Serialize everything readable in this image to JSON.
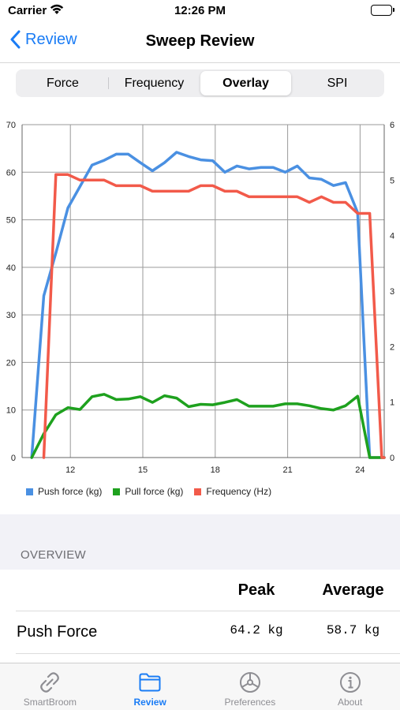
{
  "status": {
    "carrier": "Carrier",
    "time": "12:26 PM"
  },
  "nav": {
    "back_label": "Review",
    "title": "Sweep Review"
  },
  "segments": [
    {
      "label": "Force",
      "selected": false
    },
    {
      "label": "Frequency",
      "selected": false
    },
    {
      "label": "Overlay",
      "selected": true
    },
    {
      "label": "SPI",
      "selected": false
    }
  ],
  "colors": {
    "accent": "#1a7cf5",
    "push": "#4a90e2",
    "pull": "#1ea11e",
    "freq": "#f25a4a"
  },
  "chart_data": {
    "type": "line",
    "x_ticks": [
      12,
      15,
      18,
      21,
      24
    ],
    "xlim": [
      10,
      25
    ],
    "ylim_left": [
      0,
      70
    ],
    "y_ticks_left": [
      0,
      10,
      20,
      30,
      40,
      50,
      60,
      70
    ],
    "ylim_right": [
      0,
      6
    ],
    "y_ticks_right": [
      0,
      1,
      2,
      3,
      4,
      5,
      6
    ],
    "grid": true,
    "legend_position": "bottom-left",
    "series": [
      {
        "name": "Push force (kg)",
        "axis": "left",
        "color": "#4a90e2",
        "points": [
          [
            10.4,
            0
          ],
          [
            10.9,
            34
          ],
          [
            11.4,
            43
          ],
          [
            11.9,
            52.5
          ],
          [
            12.4,
            57
          ],
          [
            12.9,
            61.5
          ],
          [
            13.4,
            62.5
          ],
          [
            13.9,
            63.8
          ],
          [
            14.4,
            63.8
          ],
          [
            14.9,
            62
          ],
          [
            15.4,
            60.3
          ],
          [
            15.9,
            62
          ],
          [
            16.4,
            64.2
          ],
          [
            16.9,
            63.3
          ],
          [
            17.4,
            62.6
          ],
          [
            17.9,
            62.4
          ],
          [
            18.4,
            60
          ],
          [
            18.9,
            61.3
          ],
          [
            19.4,
            60.7
          ],
          [
            19.9,
            61
          ],
          [
            20.4,
            61
          ],
          [
            20.9,
            60
          ],
          [
            21.4,
            61.3
          ],
          [
            21.9,
            58.8
          ],
          [
            22.4,
            58.5
          ],
          [
            22.9,
            57.2
          ],
          [
            23.4,
            57.8
          ],
          [
            23.9,
            51.5
          ],
          [
            24.4,
            0
          ],
          [
            25,
            0
          ]
        ]
      },
      {
        "name": "Pull force (kg)",
        "axis": "left",
        "color": "#1ea11e",
        "points": [
          [
            10.4,
            0
          ],
          [
            10.9,
            5
          ],
          [
            11.4,
            9
          ],
          [
            11.9,
            10.5
          ],
          [
            12.4,
            10.1
          ],
          [
            12.9,
            12.8
          ],
          [
            13.4,
            13.3
          ],
          [
            13.9,
            12.2
          ],
          [
            14.4,
            12.3
          ],
          [
            14.9,
            12.8
          ],
          [
            15.4,
            11.6
          ],
          [
            15.9,
            13
          ],
          [
            16.4,
            12.5
          ],
          [
            16.9,
            10.7
          ],
          [
            17.4,
            11.2
          ],
          [
            17.9,
            11.1
          ],
          [
            18.4,
            11.6
          ],
          [
            18.9,
            12.2
          ],
          [
            19.4,
            10.8
          ],
          [
            19.9,
            10.8
          ],
          [
            20.4,
            10.8
          ],
          [
            20.9,
            11.3
          ],
          [
            21.4,
            11.3
          ],
          [
            21.9,
            10.9
          ],
          [
            22.4,
            10.3
          ],
          [
            22.9,
            10
          ],
          [
            23.4,
            10.9
          ],
          [
            23.9,
            12.9
          ],
          [
            24.4,
            0
          ],
          [
            25,
            0
          ]
        ]
      },
      {
        "name": "Frequency (Hz)",
        "axis": "right",
        "color": "#f25a4a",
        "points": [
          [
            10.9,
            0
          ],
          [
            11.4,
            5.1
          ],
          [
            11.9,
            5.1
          ],
          [
            12.4,
            5
          ],
          [
            12.9,
            5
          ],
          [
            13.4,
            5
          ],
          [
            13.9,
            4.9
          ],
          [
            14.4,
            4.9
          ],
          [
            14.9,
            4.9
          ],
          [
            15.4,
            4.8
          ],
          [
            15.9,
            4.8
          ],
          [
            16.4,
            4.8
          ],
          [
            16.9,
            4.8
          ],
          [
            17.4,
            4.9
          ],
          [
            17.9,
            4.9
          ],
          [
            18.4,
            4.8
          ],
          [
            18.9,
            4.8
          ],
          [
            19.4,
            4.7
          ],
          [
            19.9,
            4.7
          ],
          [
            20.4,
            4.7
          ],
          [
            20.9,
            4.7
          ],
          [
            21.4,
            4.7
          ],
          [
            21.9,
            4.6
          ],
          [
            22.4,
            4.7
          ],
          [
            22.9,
            4.6
          ],
          [
            23.4,
            4.6
          ],
          [
            23.9,
            4.4
          ],
          [
            24.4,
            4.4
          ],
          [
            24.9,
            0
          ],
          [
            25,
            0
          ]
        ]
      }
    ]
  },
  "overview": {
    "section_title": "OVERVIEW",
    "col_peak": "Peak",
    "col_average": "Average",
    "rows": [
      {
        "label": "Push Force",
        "peak": "64.2 kg",
        "average": "58.7 kg"
      }
    ]
  },
  "tabs": [
    {
      "label": "SmartBroom",
      "icon": "link-icon",
      "active": false
    },
    {
      "label": "Review",
      "icon": "folder-icon",
      "active": true
    },
    {
      "label": "Preferences",
      "icon": "steering-wheel-icon",
      "active": false
    },
    {
      "label": "About",
      "icon": "info-circle-icon",
      "active": false
    }
  ]
}
